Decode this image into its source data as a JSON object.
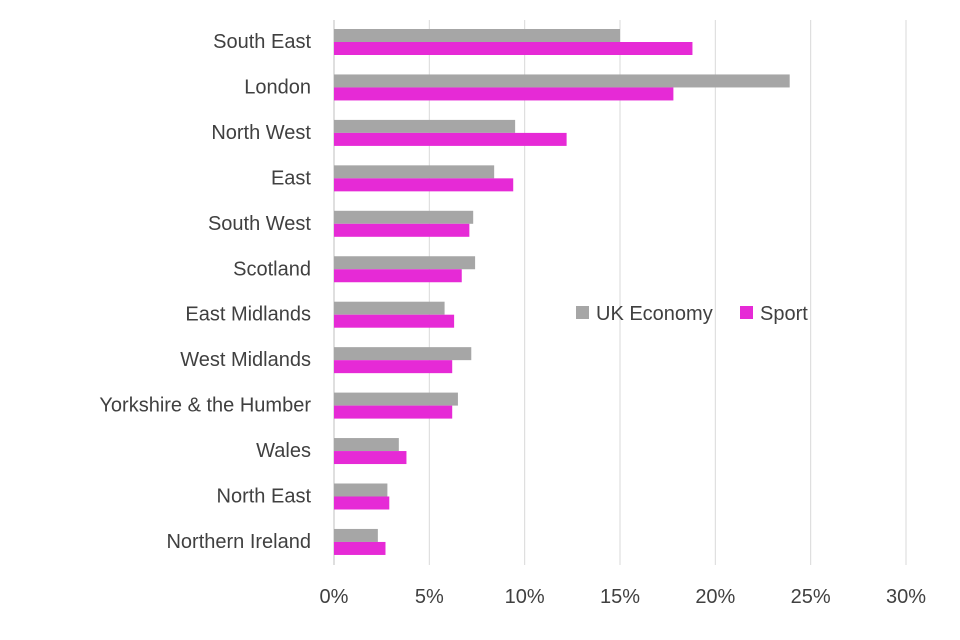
{
  "chart_data": {
    "type": "bar",
    "orientation": "horizontal",
    "title": "",
    "xlabel": "",
    "ylabel": "",
    "categories": [
      "South East",
      "London",
      "North West",
      "East",
      "South West",
      "Scotland",
      "East Midlands",
      "West Midlands",
      "Yorkshire & the Humber",
      "Wales",
      "North East",
      "Northern Ireland"
    ],
    "series": [
      {
        "name": "UK Economy",
        "color": "#a6a6a6",
        "values": [
          15.0,
          23.9,
          9.5,
          8.4,
          7.3,
          7.4,
          5.8,
          7.2,
          6.5,
          3.4,
          2.8,
          2.3
        ]
      },
      {
        "name": "Sport",
        "color": "#e62ad6",
        "values": [
          18.8,
          17.8,
          12.2,
          9.4,
          7.1,
          6.7,
          6.3,
          6.2,
          6.2,
          3.8,
          2.9,
          2.7
        ]
      }
    ],
    "xlim": [
      0,
      30
    ],
    "x_ticks": [
      "0%",
      "5%",
      "10%",
      "15%",
      "20%",
      "25%",
      "30%"
    ],
    "grid": true,
    "legend_position": "center-right"
  }
}
